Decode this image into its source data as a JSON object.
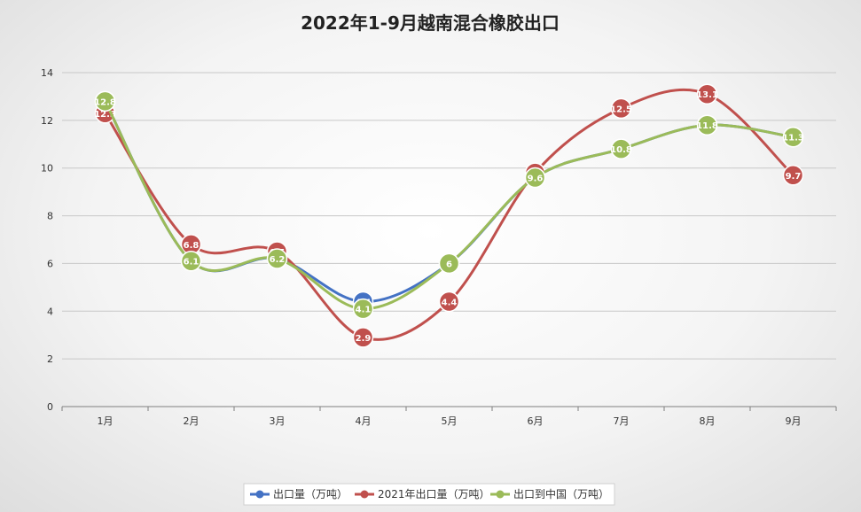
{
  "chart_data": {
    "type": "line",
    "title": "2022年1-9月越南混合橡胶出口",
    "categories": [
      "1月",
      "2月",
      "3月",
      "4月",
      "5月",
      "6月",
      "7月",
      "8月",
      "9月"
    ],
    "ylim": [
      0,
      14
    ],
    "yticks": [
      0,
      2,
      4,
      6,
      8,
      10,
      12,
      14
    ],
    "grid": true,
    "smooth": true,
    "legend_position": "bottom",
    "series": [
      {
        "name": "出口量（万吨）",
        "color": "#4472c4",
        "values": [
          12.8,
          6.1,
          6.2,
          4.4,
          6.0,
          9.6,
          10.8,
          11.8,
          11.3
        ],
        "labels": [
          null,
          null,
          null,
          "4.4",
          null,
          null,
          null,
          null,
          null
        ]
      },
      {
        "name": "2021年出口量（万吨）",
        "color": "#c0504d",
        "values": [
          12.3,
          6.8,
          6.5,
          2.9,
          4.4,
          9.8,
          12.5,
          13.1,
          9.7
        ],
        "labels": [
          "12.3",
          "6.8",
          "6.5",
          "2.9",
          "4.4",
          "9.8",
          "12.5",
          "13.1",
          "9.7"
        ]
      },
      {
        "name": "出口到中国（万吨）",
        "color": "#9bbb59",
        "values": [
          12.8,
          6.1,
          6.2,
          4.1,
          6.0,
          9.6,
          10.8,
          11.8,
          11.3
        ],
        "labels": [
          "12.8",
          "6.1",
          "6.2",
          "4.1",
          "6",
          "9.6",
          "10.8",
          "11.8",
          "11.3"
        ]
      }
    ]
  }
}
